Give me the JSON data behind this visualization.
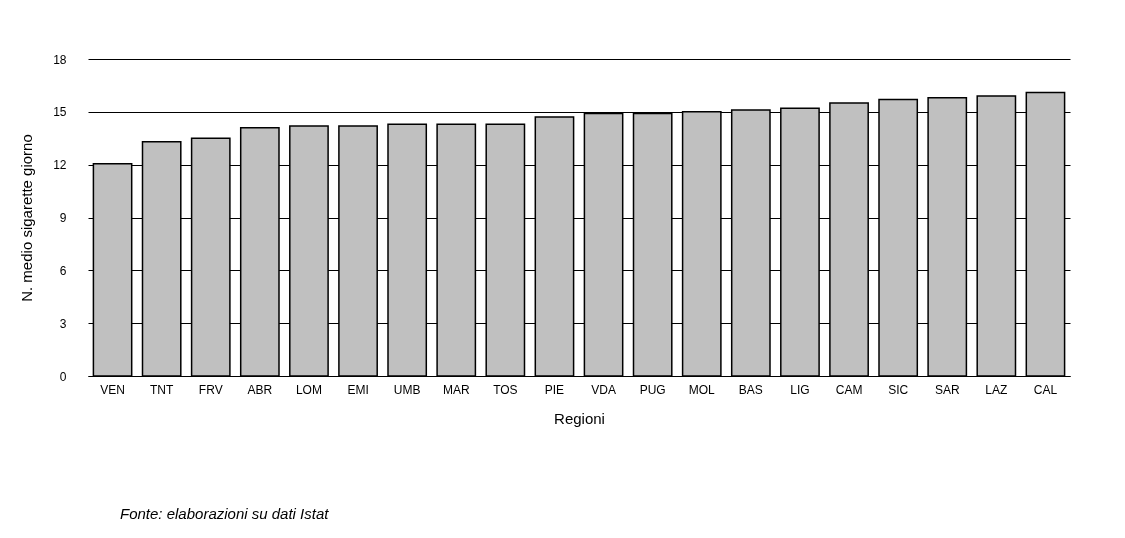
{
  "chart_data": {
    "type": "bar",
    "xlabel": "Regioni",
    "ylabel": "N. medio sigarette giorno",
    "categories": [
      "VEN",
      "TNT",
      "FRV",
      "ABR",
      "LOM",
      "EMI",
      "UMB",
      "MAR",
      "TOS",
      "PIE",
      "VDA",
      "PUG",
      "MOL",
      "BAS",
      "LIG",
      "CAM",
      "SIC",
      "SAR",
      "LAZ",
      "CAL"
    ],
    "values": [
      12.05,
      13.3,
      13.5,
      14.1,
      14.2,
      14.2,
      14.3,
      14.3,
      14.3,
      14.7,
      14.9,
      14.9,
      15.0,
      15.1,
      15.2,
      15.5,
      15.7,
      15.8,
      15.9,
      16.1
    ],
    "color": "#c0c0c0",
    "ylim": [
      0,
      18
    ],
    "yticks": [
      0,
      3,
      6,
      9,
      12,
      15,
      18
    ],
    "grid": "y",
    "annotations": [
      "Fonte: elaborazioni su dati Istat"
    ]
  }
}
